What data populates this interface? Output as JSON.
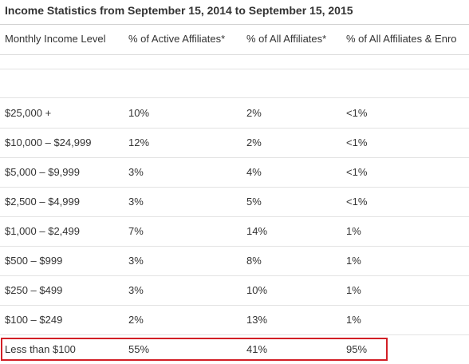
{
  "title": "Income Statistics from September 15, 2014 to September 15, 2015",
  "table": {
    "headers": [
      "Monthly Income Level",
      "% of Active Affiliates*",
      "% of All Affiliates*",
      "% of All Affiliates & Enro"
    ],
    "rows": [
      [
        "$25,000 +",
        "10%",
        "2%",
        "<1%"
      ],
      [
        "$10,000 – $24,999",
        "12%",
        "2%",
        "<1%"
      ],
      [
        "$5,000 – $9,999",
        "3%",
        "4%",
        "<1%"
      ],
      [
        "$2,500 – $4,999",
        "3%",
        "5%",
        "<1%"
      ],
      [
        "$1,000 – $2,499",
        "7%",
        "14%",
        "1%"
      ],
      [
        "$500 – $999",
        "3%",
        "8%",
        "1%"
      ],
      [
        "$250 – $499",
        "3%",
        "10%",
        "1%"
      ],
      [
        "$100 – $249",
        "2%",
        "13%",
        "1%"
      ],
      [
        "Less than $100",
        "55%",
        "41%",
        "95%"
      ]
    ]
  },
  "highlight_color": "#d21f26"
}
